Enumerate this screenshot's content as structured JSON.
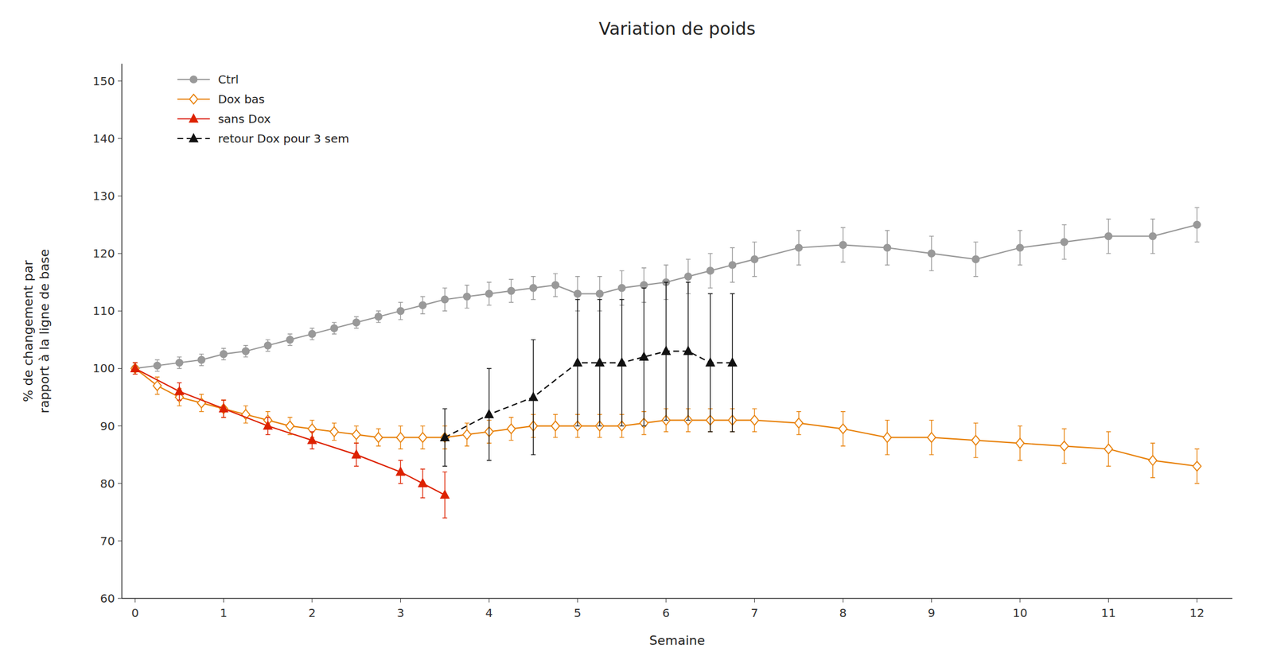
{
  "chart_data": {
    "type": "line",
    "title": "Variation de poids",
    "x_label": "Semaine",
    "y_label": "% de changement par\nrapport à la ligne de base",
    "xlim": [
      -0.15,
      12.4
    ],
    "ylim": [
      60,
      153
    ],
    "xticks": [
      0,
      1,
      2,
      3,
      4,
      5,
      6,
      7,
      8,
      9,
      10,
      11,
      12
    ],
    "yticks": [
      60,
      70,
      80,
      90,
      100,
      110,
      120,
      130,
      140,
      150
    ],
    "grid": false,
    "legend": "upper left",
    "series": [
      {
        "name": "Ctrl",
        "color": "#999999",
        "marker": "circle",
        "line_style": "solid",
        "x": [
          0,
          0.25,
          0.5,
          0.75,
          1.0,
          1.25,
          1.5,
          1.75,
          2.0,
          2.25,
          2.5,
          2.75,
          3.0,
          3.25,
          3.5,
          3.75,
          4.0,
          4.25,
          4.5,
          4.75,
          5.0,
          5.25,
          5.5,
          5.75,
          6.0,
          6.25,
          6.5,
          6.75,
          7.0,
          7.5,
          8.0,
          8.5,
          9.0,
          9.5,
          10.0,
          10.5,
          11.0,
          11.5,
          12.0
        ],
        "values": [
          100,
          100.5,
          101,
          101.5,
          102.5,
          103,
          104,
          105,
          106,
          107,
          108,
          109,
          110,
          111,
          112,
          112.5,
          113,
          113.5,
          114,
          114.5,
          113,
          113,
          114,
          114.5,
          115,
          116,
          117,
          118,
          119,
          121,
          121.5,
          121,
          120,
          119,
          121,
          122,
          123,
          123,
          125
        ],
        "errors": [
          1,
          1,
          1,
          1,
          1,
          1,
          1,
          1,
          1,
          1,
          1,
          1,
          1.5,
          1.5,
          2,
          2,
          2,
          2,
          2,
          2,
          3,
          3,
          3,
          3,
          3,
          3,
          3,
          3,
          3,
          3,
          3,
          3,
          3,
          3,
          3,
          3,
          3,
          3,
          3
        ]
      },
      {
        "name": "Dox bas",
        "color": "#E8820C",
        "marker": "open-diamond",
        "line_style": "solid",
        "x": [
          0,
          0.25,
          0.5,
          0.75,
          1.0,
          1.25,
          1.5,
          1.75,
          2.0,
          2.25,
          2.5,
          2.75,
          3.0,
          3.25,
          3.5,
          3.75,
          4.0,
          4.25,
          4.5,
          4.75,
          5.0,
          5.25,
          5.5,
          5.75,
          6.0,
          6.25,
          6.5,
          6.75,
          7.0,
          7.5,
          8.0,
          8.5,
          9.0,
          9.5,
          10.0,
          10.5,
          11.0,
          11.5,
          12.0
        ],
        "values": [
          100,
          97,
          95,
          94,
          93,
          92,
          91,
          90,
          89.5,
          89,
          88.5,
          88,
          88,
          88,
          88,
          88.5,
          89,
          89.5,
          90,
          90,
          90,
          90,
          90,
          90.5,
          91,
          91,
          91,
          91,
          91,
          90.5,
          89.5,
          88,
          88,
          87.5,
          87,
          86.5,
          86,
          84,
          83
        ],
        "errors": [
          1,
          1.5,
          1.5,
          1.5,
          1.5,
          1.5,
          1.5,
          1.5,
          1.5,
          1.5,
          1.5,
          1.5,
          2,
          2,
          2,
          2,
          2,
          2,
          2,
          2,
          2,
          2,
          2,
          2,
          2,
          2,
          2,
          2,
          2,
          2,
          3,
          3,
          3,
          3,
          3,
          3,
          3,
          3,
          3
        ]
      },
      {
        "name": "sans Dox",
        "color": "#DD2200",
        "marker": "triangle",
        "line_style": "solid",
        "x": [
          0,
          0.5,
          1.0,
          1.5,
          2.0,
          2.5,
          3.0,
          3.25,
          3.5
        ],
        "values": [
          100,
          96,
          93,
          90,
          87.5,
          85,
          82,
          80,
          78
        ],
        "errors": [
          1,
          1.5,
          1.5,
          1.5,
          1.5,
          2,
          2,
          2.5,
          4
        ]
      },
      {
        "name": "retour Dox pour 3 sem",
        "color": "#111111",
        "marker": "triangle",
        "line_style": "dashed",
        "x": [
          3.5,
          4.0,
          4.5,
          5.0,
          5.25,
          5.5,
          5.75,
          6.0,
          6.25,
          6.5,
          6.75
        ],
        "values": [
          88,
          92,
          95,
          101,
          101,
          101,
          102,
          103,
          103,
          101,
          101
        ],
        "errors": [
          5,
          8,
          10,
          11,
          11,
          11,
          12,
          12,
          12,
          12,
          12
        ]
      }
    ]
  }
}
